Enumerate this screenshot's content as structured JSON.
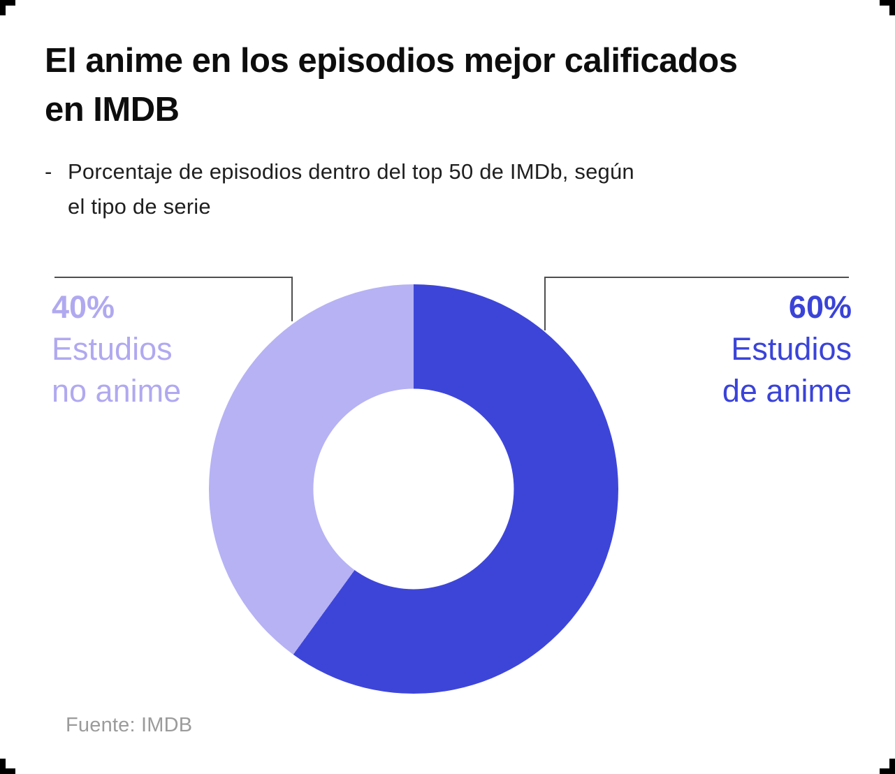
{
  "header": {
    "title_lines": [
      "El anime en los episodios mejor calificados",
      "en IMDB"
    ],
    "subtitle_bullet": "-",
    "subtitle_lines": [
      "Porcentaje de episodios dentro del top 50 de IMDb, según",
      "el tipo de serie"
    ]
  },
  "chart_data": {
    "type": "pie",
    "subtype": "donut",
    "title": "El anime en los episodios mejor calificados en IMDB",
    "categories": [
      "Estudios de anime",
      "Estudios no anime"
    ],
    "values": [
      60,
      40
    ],
    "unit": "%",
    "colors": [
      "#3D45D9",
      "#B6B2F4"
    ],
    "start_angle_deg": 0,
    "direction": "clockwise",
    "inner_radius_ratio": 0.49,
    "legend_position": "none",
    "labels": [
      {
        "value": "60%",
        "lines": [
          "Estudios",
          "de anime"
        ],
        "side": "right",
        "text_color": "#3A43D8"
      },
      {
        "value": "40%",
        "lines": [
          "Estudios",
          "no anime"
        ],
        "side": "left",
        "text_color": "#B0A9F0"
      }
    ]
  },
  "footer": {
    "source": "Fuente: IMDB"
  },
  "colors": {
    "background": "#FFFFFF",
    "title_text": "#0D0D0D",
    "subtitle_text": "#1F1F1F",
    "anime_slice": "#3D45D9",
    "non_anime_slice": "#B6B2F4",
    "right_label_text": "#3A43D8",
    "left_label_text": "#B0A9F0",
    "callout_line": "#4F4F4F",
    "source_text": "#9B9B9B",
    "crop_mark": "#000000"
  }
}
